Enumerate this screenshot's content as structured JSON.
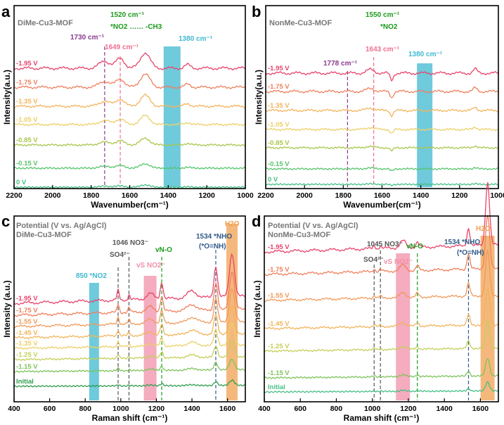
{
  "chart_data": [
    {
      "panel": "a",
      "type": "line",
      "title": "DiMe-Cu3-MOF",
      "xlabel": "Wavenumber(cm⁻¹)",
      "ylabel": "Intensity(a.u.)",
      "xlim": [
        2200,
        1000
      ],
      "xticks": [
        "2200",
        "2000",
        "1800",
        "1600",
        "1400",
        "1200",
        "1000"
      ],
      "series": [
        {
          "name": "-1.95 V",
          "color": "#e8436a"
        },
        {
          "name": "-1.75 V",
          "color": "#ef7f5c"
        },
        {
          "name": "-1.35 V",
          "color": "#f2b45a"
        },
        {
          "name": "-1.05 V",
          "color": "#ecd068"
        },
        {
          "name": "-0.85 V",
          "color": "#a9c64a"
        },
        {
          "name": "-0.15 V",
          "color": "#55c46a"
        },
        {
          "name": "0 V",
          "color": "#46bf86"
        }
      ],
      "annotations": [
        {
          "text": "1730 cm⁻¹",
          "x": 1730,
          "color": "#8a3a8e",
          "style": "dashed"
        },
        {
          "text": "1649 cm⁻¹",
          "x": 1649,
          "color": "#f07090",
          "style": "dashed"
        },
        {
          "text": "1520 cm⁻¹",
          "x": 1520,
          "color": "#1a9a1a",
          "style": "dashed"
        },
        {
          "text": "*NO2 …… -CH3",
          "color": "#1a9a1a"
        },
        {
          "text": "1380 cm⁻¹",
          "x": 1380,
          "color": "#3fb8d0",
          "style": "band"
        }
      ]
    },
    {
      "panel": "b",
      "type": "line",
      "title": "NonMe-Cu3-MOF",
      "xlabel": "Wavenumber(cm⁻¹)",
      "ylabel": "Intensity(a.u.)",
      "xlim": [
        2200,
        1000
      ],
      "xticks": [
        "2200",
        "2000",
        "1800",
        "1600",
        "1400",
        "1200",
        "1000"
      ],
      "series": [
        {
          "name": "-1.95 V",
          "color": "#e8436a"
        },
        {
          "name": "-1.75 V",
          "color": "#ef7f5c"
        },
        {
          "name": "-1.35 V",
          "color": "#f2b45a"
        },
        {
          "name": "-1.05 V",
          "color": "#ecd068"
        },
        {
          "name": "-0.85 V",
          "color": "#a9c64a"
        },
        {
          "name": "-0.15 V",
          "color": "#55c46a"
        },
        {
          "name": "0 V",
          "color": "#46bf86"
        }
      ],
      "annotations": [
        {
          "text": "1778 cm⁻¹",
          "x": 1778,
          "color": "#8a3a8e",
          "style": "dashed"
        },
        {
          "text": "1643 cm⁻¹",
          "x": 1643,
          "color": "#f07090",
          "style": "dashed"
        },
        {
          "text": "1550 cm⁻¹",
          "x": 1550,
          "color": "#1a9a1a",
          "style": "dashed"
        },
        {
          "text": "*NO2",
          "color": "#1a9a1a"
        },
        {
          "text": "1380 cm⁻¹",
          "x": 1380,
          "color": "#3fb8d0",
          "style": "band"
        }
      ]
    },
    {
      "panel": "c",
      "type": "line",
      "title": "DiMe-Cu3-MOF",
      "subtitle": "Potential (V vs. Ag/AgCl)",
      "xlabel": "Raman shift (cm⁻¹)",
      "ylabel": "Intensity (a.u.)",
      "xlim": [
        400,
        1700
      ],
      "xticks": [
        "400",
        "600",
        "800",
        "1000",
        "1200",
        "1400",
        "1600"
      ],
      "series": [
        {
          "name": "-1.95 V",
          "color": "#e8436a"
        },
        {
          "name": "-1.75 V",
          "color": "#ef7f5c"
        },
        {
          "name": "-1.55 V",
          "color": "#f19a5a"
        },
        {
          "name": "-1.45 V",
          "color": "#f2b45a"
        },
        {
          "name": "-1.35 V",
          "color": "#ecd068"
        },
        {
          "name": "-1.25 V",
          "color": "#c4cf58"
        },
        {
          "name": "-1.15 V",
          "color": "#7cc45a"
        },
        {
          "name": "Initial",
          "color": "#2f9d4c"
        }
      ],
      "annotations": [
        {
          "text": "850 *NO2",
          "x": 850,
          "color": "#3fb8d0",
          "style": "band"
        },
        {
          "text": "SO4²⁻",
          "x": 985,
          "color": "#555555",
          "style": "dashed"
        },
        {
          "text": "1046 NO3⁻",
          "x": 1046,
          "color": "#555555",
          "style": "dashed"
        },
        {
          "text": "vS NO2⁻",
          "x": 1165,
          "color": "#f090a8",
          "style": "band"
        },
        {
          "text": "vN-O",
          "x": 1230,
          "color": "#1a9a1a",
          "style": "dashed"
        },
        {
          "text": "1534 *NHO",
          "x": 1534,
          "color": "#2f5a8a",
          "style": "dashed"
        },
        {
          "text": "(*O=NH)",
          "color": "#2f5a8a"
        },
        {
          "text": "H2O",
          "x": 1625,
          "color": "#f0a050",
          "style": "band"
        }
      ]
    },
    {
      "panel": "d",
      "type": "line",
      "title": "NonMe-Cu3-MOF",
      "subtitle": "Potential (V vs. Ag/AgCl)",
      "xlabel": "Raman shift (cm⁻¹)",
      "ylabel": "Intensity (a.u.)",
      "xlim": [
        400,
        1700
      ],
      "xticks": [
        "400",
        "600",
        "800",
        "1000",
        "1200",
        "1400",
        "1600"
      ],
      "series": [
        {
          "name": "-1.95 V",
          "color": "#e8436a"
        },
        {
          "name": "-1.75 V",
          "color": "#ef7f5c"
        },
        {
          "name": "-1.55 V",
          "color": "#f19a5a"
        },
        {
          "name": "-1.45 V",
          "color": "#f2b45a"
        },
        {
          "name": "-1.25 V",
          "color": "#c4cf58"
        },
        {
          "name": "-1.15 V",
          "color": "#7cc45a"
        },
        {
          "name": "Initial",
          "color": "#46bf86"
        }
      ],
      "annotations": [
        {
          "text": "SO4²⁻",
          "x": 1010,
          "color": "#555555",
          "style": "dashed"
        },
        {
          "text": "1045 NO3⁻",
          "x": 1045,
          "color": "#555555",
          "style": "dashed"
        },
        {
          "text": "vS NO2⁻",
          "x": 1170,
          "color": "#f090a8",
          "style": "band"
        },
        {
          "text": "vN-O",
          "x": 1250,
          "color": "#1a9a1a",
          "style": "dashed"
        },
        {
          "text": "1534 *NHO",
          "x": 1534,
          "color": "#2f5a8a",
          "style": "dashed"
        },
        {
          "text": "(*O=NH)",
          "color": "#2f5a8a"
        },
        {
          "text": "H2O",
          "x": 1640,
          "color": "#f0a050",
          "style": "band"
        }
      ]
    }
  ]
}
